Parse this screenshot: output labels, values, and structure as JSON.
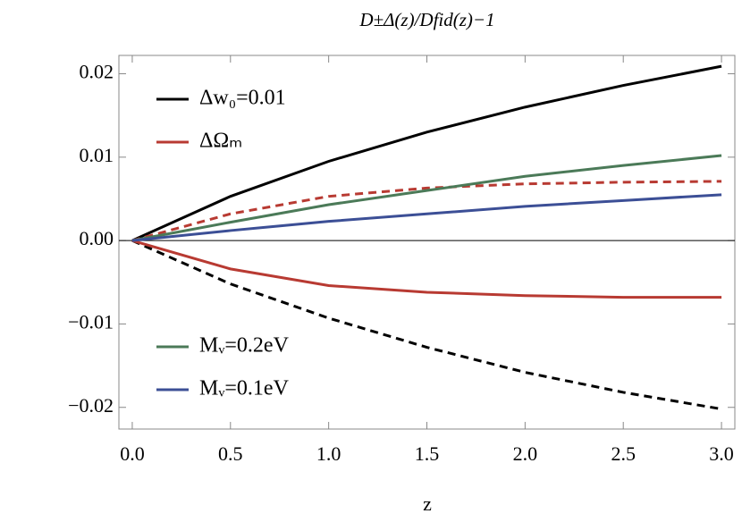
{
  "chart_data": {
    "type": "line",
    "title": "D±Δ(z)/Dfid(z)−1",
    "x_label": "z",
    "x": [
      0,
      0.5,
      1.0,
      1.5,
      2.0,
      2.5,
      3.0
    ],
    "series": [
      {
        "name": "Δw₀=0.01",
        "color": "#000000",
        "dash": false,
        "values": [
          0,
          0.0053,
          0.0095,
          0.013,
          0.016,
          0.0186,
          0.0209
        ]
      },
      {
        "color": "#000000",
        "dash": true,
        "values": [
          0,
          -0.0052,
          -0.0093,
          -0.0128,
          -0.0158,
          -0.0182,
          -0.0202
        ]
      },
      {
        "name": "ΔΩₘ",
        "color": "#b83a32",
        "dash": true,
        "values": [
          0,
          0.0032,
          0.0053,
          0.0063,
          0.0068,
          0.007,
          0.0071
        ]
      },
      {
        "color": "#b83a32",
        "dash": false,
        "values": [
          0,
          -0.0034,
          -0.0054,
          -0.0062,
          -0.0066,
          -0.0068,
          -0.0068
        ]
      },
      {
        "name": "Mᵥ=0.2eV",
        "color": "#4b7a58",
        "dash": false,
        "values": [
          0,
          0.0022,
          0.0043,
          0.006,
          0.0077,
          0.009,
          0.0102
        ]
      },
      {
        "name": "Mᵥ=0.1eV",
        "color": "#3c4f96",
        "dash": false,
        "values": [
          0,
          0.0012,
          0.0023,
          0.0032,
          0.0041,
          0.0048,
          0.0055
        ]
      }
    ],
    "xlim": [
      -0.068,
      3.068
    ],
    "ylim": [
      -0.0226,
      0.0222
    ],
    "xticks": [
      {
        "value": 0,
        "label": "0.0"
      },
      0.5,
      {
        "value": 1,
        "label": "1.0"
      },
      1.5,
      {
        "value": 2,
        "label": "2.0"
      },
      2.5,
      {
        "value": 3,
        "label": "3.0"
      }
    ],
    "yticks": [
      {
        "value": -0.02,
        "label": "−0.02"
      },
      {
        "value": -0.01,
        "label": "−0.01"
      },
      {
        "value": 0,
        "label": "0.00"
      },
      0.01,
      0.02
    ],
    "zero_line": true
  }
}
